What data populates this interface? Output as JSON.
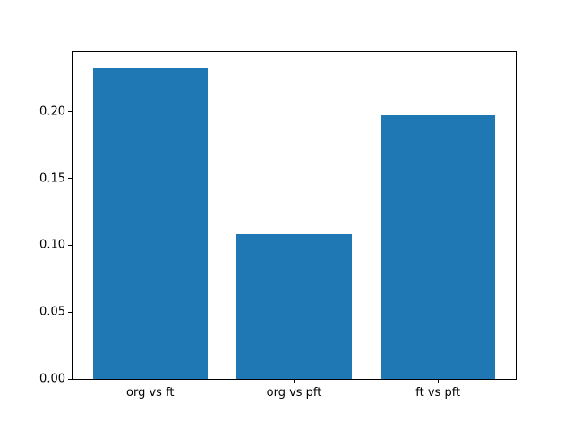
{
  "chart_data": {
    "type": "bar",
    "categories": [
      "org vs ft",
      "org vs pft",
      "ft vs pft"
    ],
    "values": [
      0.233,
      0.108,
      0.197
    ],
    "title": "",
    "xlabel": "",
    "ylabel": "",
    "ylim": [
      0,
      0.2447
    ],
    "yticks": [
      0.0,
      0.05,
      0.1,
      0.15,
      0.2
    ],
    "ytick_labels": [
      "0.00",
      "0.05",
      "0.10",
      "0.15",
      "0.20"
    ],
    "bar_color": "#1f77b4",
    "bar_width_data_units": 0.8,
    "x_margin_data_units": 0.54,
    "grid": false,
    "legend": null,
    "background_color": "#ffffff",
    "spine_color": "#000000"
  }
}
